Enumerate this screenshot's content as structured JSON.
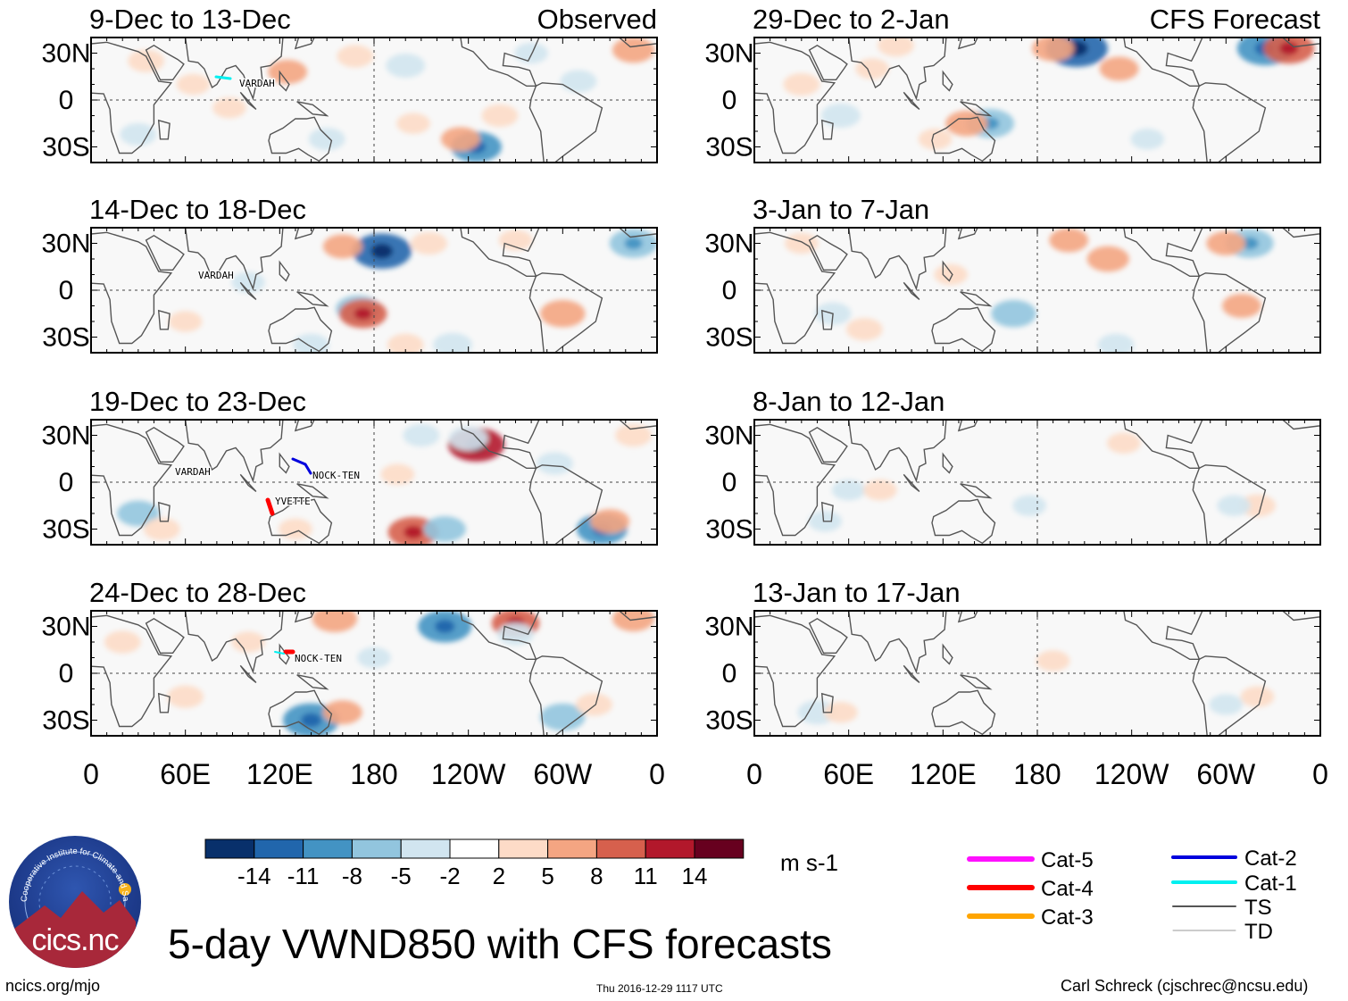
{
  "main_title": "5-day VWND850 with CFS forecasts",
  "unit_label": "m s-1",
  "footer": {
    "left": "ncics.org/mjo",
    "center": "Thu 2016-12-29 1117 UTC",
    "right": "Carl Schreck (cjschrec@ncsu.edu)"
  },
  "logo": {
    "text": "cics.nc",
    "arc_text": "Cooperative Institute for Climate and Satellites"
  },
  "headers": {
    "observed": "Observed",
    "forecast": "CFS Forecast"
  },
  "track_legend": [
    {
      "label": "Cat-5",
      "color": "#ff10ff"
    },
    {
      "label": "Cat-4",
      "color": "#ff0000"
    },
    {
      "label": "Cat-3",
      "color": "#ffa500"
    },
    {
      "label": "Cat-2",
      "color": "#0000dd"
    },
    {
      "label": "Cat-1",
      "color": "#00f0f0"
    },
    {
      "label": "TS",
      "color": "#555555"
    },
    {
      "label": "TD",
      "color": "#999999"
    }
  ],
  "chart_data": [
    {
      "type": "heatmap",
      "title": "9-Dec to 13-Dec",
      "header": "Observed",
      "variable": "VWND850 anomaly (m s-1)",
      "x_tick_labels": [
        "0",
        "60E",
        "120E",
        "180",
        "120W",
        "60W",
        "0"
      ],
      "y_tick_labels": [
        "30N",
        "0",
        "30S"
      ],
      "lon_range": [
        0,
        360
      ],
      "lat_range": [
        -40,
        40
      ],
      "storm_labels": [
        "VARDAH"
      ],
      "anomalies": [
        {
          "lon": 35,
          "lat": 25,
          "v": 4
        },
        {
          "lon": 65,
          "lat": 10,
          "v": 3
        },
        {
          "lon": 125,
          "lat": 18,
          "v": 5
        },
        {
          "lon": 168,
          "lat": 28,
          "v": 4
        },
        {
          "lon": 200,
          "lat": 22,
          "v": -5
        },
        {
          "lon": 260,
          "lat": -10,
          "v": 4
        },
        {
          "lon": 245,
          "lat": -30,
          "v": -9
        },
        {
          "lon": 235,
          "lat": -25,
          "v": 5
        },
        {
          "lon": 150,
          "lat": -25,
          "v": -4
        },
        {
          "lon": 205,
          "lat": -15,
          "v": 3
        },
        {
          "lon": 30,
          "lat": -22,
          "v": -4
        },
        {
          "lon": 345,
          "lat": 32,
          "v": 6
        },
        {
          "lon": 310,
          "lat": 12,
          "v": -4
        },
        {
          "lon": 88,
          "lat": -5,
          "v": 3
        },
        {
          "lon": 280,
          "lat": 30,
          "v": -3
        }
      ]
    },
    {
      "type": "heatmap",
      "title": "14-Dec to 18-Dec",
      "variable": "VWND850 anomaly (m s-1)",
      "x_tick_labels": [
        "0",
        "60E",
        "120E",
        "180",
        "120W",
        "60W",
        "0"
      ],
      "y_tick_labels": [
        "30N",
        "0",
        "30S"
      ],
      "lon_range": [
        0,
        360
      ],
      "lat_range": [
        -40,
        40
      ],
      "storm_labels": [
        "VARDAH"
      ],
      "anomalies": [
        {
          "lon": 185,
          "lat": 25,
          "v": -12
        },
        {
          "lon": 160,
          "lat": 28,
          "v": 5
        },
        {
          "lon": 215,
          "lat": 30,
          "v": 4
        },
        {
          "lon": 170,
          "lat": -12,
          "v": -7
        },
        {
          "lon": 173,
          "lat": -15,
          "v": 8
        },
        {
          "lon": 300,
          "lat": -15,
          "v": 7
        },
        {
          "lon": 200,
          "lat": -35,
          "v": 4
        },
        {
          "lon": 230,
          "lat": -35,
          "v": -5
        },
        {
          "lon": 345,
          "lat": 30,
          "v": -8
        },
        {
          "lon": 60,
          "lat": -20,
          "v": 3
        },
        {
          "lon": 140,
          "lat": -35,
          "v": -4
        },
        {
          "lon": 100,
          "lat": 5,
          "v": -3
        },
        {
          "lon": 270,
          "lat": 32,
          "v": 3
        }
      ]
    },
    {
      "type": "heatmap",
      "title": "19-Dec to 23-Dec",
      "variable": "VWND850 anomaly (m s-1)",
      "x_tick_labels": [
        "0",
        "60E",
        "120E",
        "180",
        "120W",
        "60W",
        "0"
      ],
      "y_tick_labels": [
        "30N",
        "0",
        "30S"
      ],
      "lon_range": [
        0,
        360
      ],
      "lat_range": [
        -40,
        40
      ],
      "storm_labels": [
        "VARDAH",
        "NOCK-TEN",
        "YVETTE"
      ],
      "anomalies": [
        {
          "lon": 245,
          "lat": 24,
          "v": 11
        },
        {
          "lon": 240,
          "lat": 28,
          "v": -5
        },
        {
          "lon": 210,
          "lat": 30,
          "v": -4
        },
        {
          "lon": 205,
          "lat": -32,
          "v": 9
        },
        {
          "lon": 225,
          "lat": -30,
          "v": -6
        },
        {
          "lon": 325,
          "lat": -30,
          "v": -9
        },
        {
          "lon": 330,
          "lat": -25,
          "v": 5
        },
        {
          "lon": 30,
          "lat": -20,
          "v": -6
        },
        {
          "lon": 295,
          "lat": 12,
          "v": -4
        },
        {
          "lon": 195,
          "lat": 5,
          "v": 3
        },
        {
          "lon": 45,
          "lat": -30,
          "v": 4
        },
        {
          "lon": 130,
          "lat": -30,
          "v": 3
        },
        {
          "lon": 345,
          "lat": 30,
          "v": 4
        }
      ]
    },
    {
      "type": "heatmap",
      "title": "24-Dec to 28-Dec",
      "variable": "VWND850 anomaly (m s-1)",
      "x_tick_labels": [
        "0",
        "60E",
        "120E",
        "180",
        "120W",
        "60W",
        "0"
      ],
      "y_tick_labels": [
        "30N",
        "0",
        "30S"
      ],
      "lon_range": [
        0,
        360
      ],
      "lat_range": [
        -40,
        40
      ],
      "storm_labels": [
        "NOCK-TEN"
      ],
      "anomalies": [
        {
          "lon": 155,
          "lat": 35,
          "v": 7
        },
        {
          "lon": 225,
          "lat": 30,
          "v": -10
        },
        {
          "lon": 270,
          "lat": 32,
          "v": 8
        },
        {
          "lon": 270,
          "lat": 25,
          "v": -4
        },
        {
          "lon": 140,
          "lat": -30,
          "v": -11
        },
        {
          "lon": 160,
          "lat": -25,
          "v": 5
        },
        {
          "lon": 300,
          "lat": -28,
          "v": -7
        },
        {
          "lon": 320,
          "lat": -20,
          "v": 4
        },
        {
          "lon": 60,
          "lat": -15,
          "v": 4
        },
        {
          "lon": 20,
          "lat": 20,
          "v": 4
        },
        {
          "lon": 100,
          "lat": 20,
          "v": 3
        },
        {
          "lon": 345,
          "lat": 35,
          "v": 6
        },
        {
          "lon": 180,
          "lat": 10,
          "v": -3
        }
      ]
    },
    {
      "type": "heatmap",
      "title": "29-Dec to 2-Jan",
      "header": "CFS Forecast",
      "variable": "VWND850 anomaly (m s-1)",
      "x_tick_labels": [
        "0",
        "60E",
        "120E",
        "180",
        "120W",
        "60W",
        "0"
      ],
      "y_tick_labels": [
        "30N",
        "0",
        "30S"
      ],
      "lon_range": [
        0,
        360
      ],
      "lat_range": [
        -40,
        40
      ],
      "storm_labels": [],
      "anomalies": [
        {
          "lon": 205,
          "lat": 33,
          "v": -13
        },
        {
          "lon": 190,
          "lat": 33,
          "v": 6
        },
        {
          "lon": 232,
          "lat": 20,
          "v": 5
        },
        {
          "lon": 325,
          "lat": 33,
          "v": -11
        },
        {
          "lon": 340,
          "lat": 33,
          "v": 9
        },
        {
          "lon": 150,
          "lat": -15,
          "v": -8
        },
        {
          "lon": 135,
          "lat": -15,
          "v": 6
        },
        {
          "lon": 55,
          "lat": -10,
          "v": -5
        },
        {
          "lon": 30,
          "lat": 10,
          "v": 4
        },
        {
          "lon": 75,
          "lat": 20,
          "v": 3
        },
        {
          "lon": 115,
          "lat": -25,
          "v": 3
        },
        {
          "lon": 250,
          "lat": -25,
          "v": -3
        },
        {
          "lon": 90,
          "lat": 35,
          "v": 4
        }
      ]
    },
    {
      "type": "heatmap",
      "title": "3-Jan to 7-Jan",
      "variable": "VWND850 anomaly (m s-1)",
      "x_tick_labels": [
        "0",
        "60E",
        "120E",
        "180",
        "120W",
        "60W",
        "0"
      ],
      "y_tick_labels": [
        "30N",
        "0",
        "30S"
      ],
      "lon_range": [
        0,
        360
      ],
      "lat_range": [
        -40,
        40
      ],
      "storm_labels": [],
      "anomalies": [
        {
          "lon": 315,
          "lat": 30,
          "v": -8
        },
        {
          "lon": 300,
          "lat": 30,
          "v": 5
        },
        {
          "lon": 225,
          "lat": 20,
          "v": 6
        },
        {
          "lon": 200,
          "lat": 32,
          "v": 5
        },
        {
          "lon": 165,
          "lat": -15,
          "v": -7
        },
        {
          "lon": 50,
          "lat": -15,
          "v": -4
        },
        {
          "lon": 70,
          "lat": -25,
          "v": 4
        },
        {
          "lon": 230,
          "lat": -35,
          "v": -4
        },
        {
          "lon": 310,
          "lat": -10,
          "v": 5
        },
        {
          "lon": 125,
          "lat": 10,
          "v": 3
        },
        {
          "lon": 30,
          "lat": 30,
          "v": 3
        }
      ]
    },
    {
      "type": "heatmap",
      "title": "8-Jan to 12-Jan",
      "variable": "VWND850 anomaly (m s-1)",
      "x_tick_labels": [
        "0",
        "60E",
        "120E",
        "180",
        "120W",
        "60W",
        "0"
      ],
      "y_tick_labels": [
        "30N",
        "0",
        "30S"
      ],
      "lon_range": [
        0,
        360
      ],
      "lat_range": [
        -40,
        40
      ],
      "storm_labels": [],
      "anomalies": [
        {
          "lon": 235,
          "lat": 25,
          "v": 3
        },
        {
          "lon": 60,
          "lat": -5,
          "v": -3
        },
        {
          "lon": 80,
          "lat": -5,
          "v": 3
        },
        {
          "lon": 320,
          "lat": -15,
          "v": 4
        },
        {
          "lon": 305,
          "lat": -15,
          "v": -3
        },
        {
          "lon": 175,
          "lat": -15,
          "v": -3
        },
        {
          "lon": 45,
          "lat": -25,
          "v": -3
        }
      ]
    },
    {
      "type": "heatmap",
      "title": "13-Jan to 17-Jan",
      "variable": "VWND850 anomaly (m s-1)",
      "x_tick_labels": [
        "0",
        "60E",
        "120E",
        "180",
        "120W",
        "60W",
        "0"
      ],
      "y_tick_labels": [
        "30N",
        "0",
        "30S"
      ],
      "lon_range": [
        0,
        360
      ],
      "lat_range": [
        -40,
        40
      ],
      "storm_labels": [],
      "anomalies": [
        {
          "lon": 40,
          "lat": -25,
          "v": -5
        },
        {
          "lon": 55,
          "lat": -25,
          "v": 3
        },
        {
          "lon": 190,
          "lat": 8,
          "v": 3
        },
        {
          "lon": 320,
          "lat": -15,
          "v": 3
        },
        {
          "lon": 300,
          "lat": -20,
          "v": -3
        }
      ]
    }
  ],
  "colorbar": {
    "ticks": [
      "-14",
      "-11",
      "-8",
      "-5",
      "-2",
      "2",
      "5",
      "8",
      "11",
      "14"
    ],
    "colors": [
      "#08306b",
      "#2166ac",
      "#4393c3",
      "#92c5de",
      "#d1e5f0",
      "#ffffff",
      "#fddbc7",
      "#f4a582",
      "#d6604d",
      "#b2182b",
      "#67001f"
    ]
  }
}
